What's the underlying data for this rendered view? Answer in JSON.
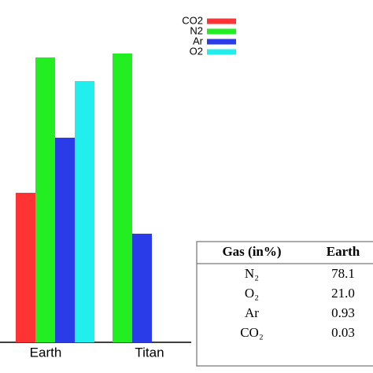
{
  "chart_data": {
    "type": "bar",
    "categories": [
      "Earth",
      "Titan"
    ],
    "ylim": [
      0,
      100
    ],
    "series": [
      {
        "name": "CO2",
        "color": "#ff3333",
        "values": [
          47.5,
          null
        ]
      },
      {
        "name": "N2",
        "color": "#22ee22",
        "values": [
          90.5,
          91.75
        ]
      },
      {
        "name": "Ar",
        "color": "#2a3be8",
        "values": [
          65,
          34.5
        ]
      },
      {
        "name": "O2",
        "color": "#22eeee",
        "values": [
          83,
          null
        ]
      }
    ]
  },
  "table": {
    "header": [
      "Gas (in%)",
      "Earth"
    ],
    "rows": [
      [
        "N₂",
        "78.1"
      ],
      [
        "O₂",
        "21.0"
      ],
      [
        "Ar",
        "0.93"
      ],
      [
        "CO₂",
        "0.03"
      ]
    ]
  }
}
